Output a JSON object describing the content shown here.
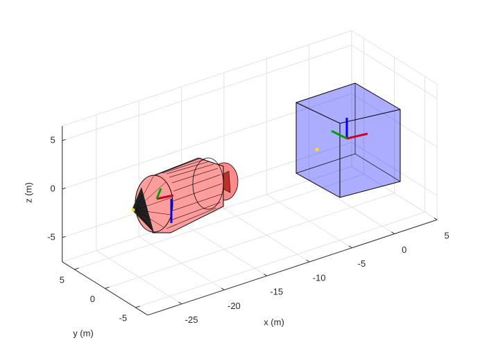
{
  "chart_data": {
    "type": "scene3d",
    "xlabel": "x (m)",
    "ylabel": "y (m)",
    "zlabel": "z (m)",
    "xlim": [
      -29,
      5
    ],
    "ylim": [
      -7,
      7
    ],
    "zlim": [
      -7.5,
      6.5
    ],
    "xticks": [
      -25,
      -20,
      -15,
      -10,
      -5,
      0,
      5
    ],
    "yticks": [
      -5,
      0,
      5
    ],
    "zticks": [
      -5,
      0,
      5
    ],
    "grid": true
  }
}
